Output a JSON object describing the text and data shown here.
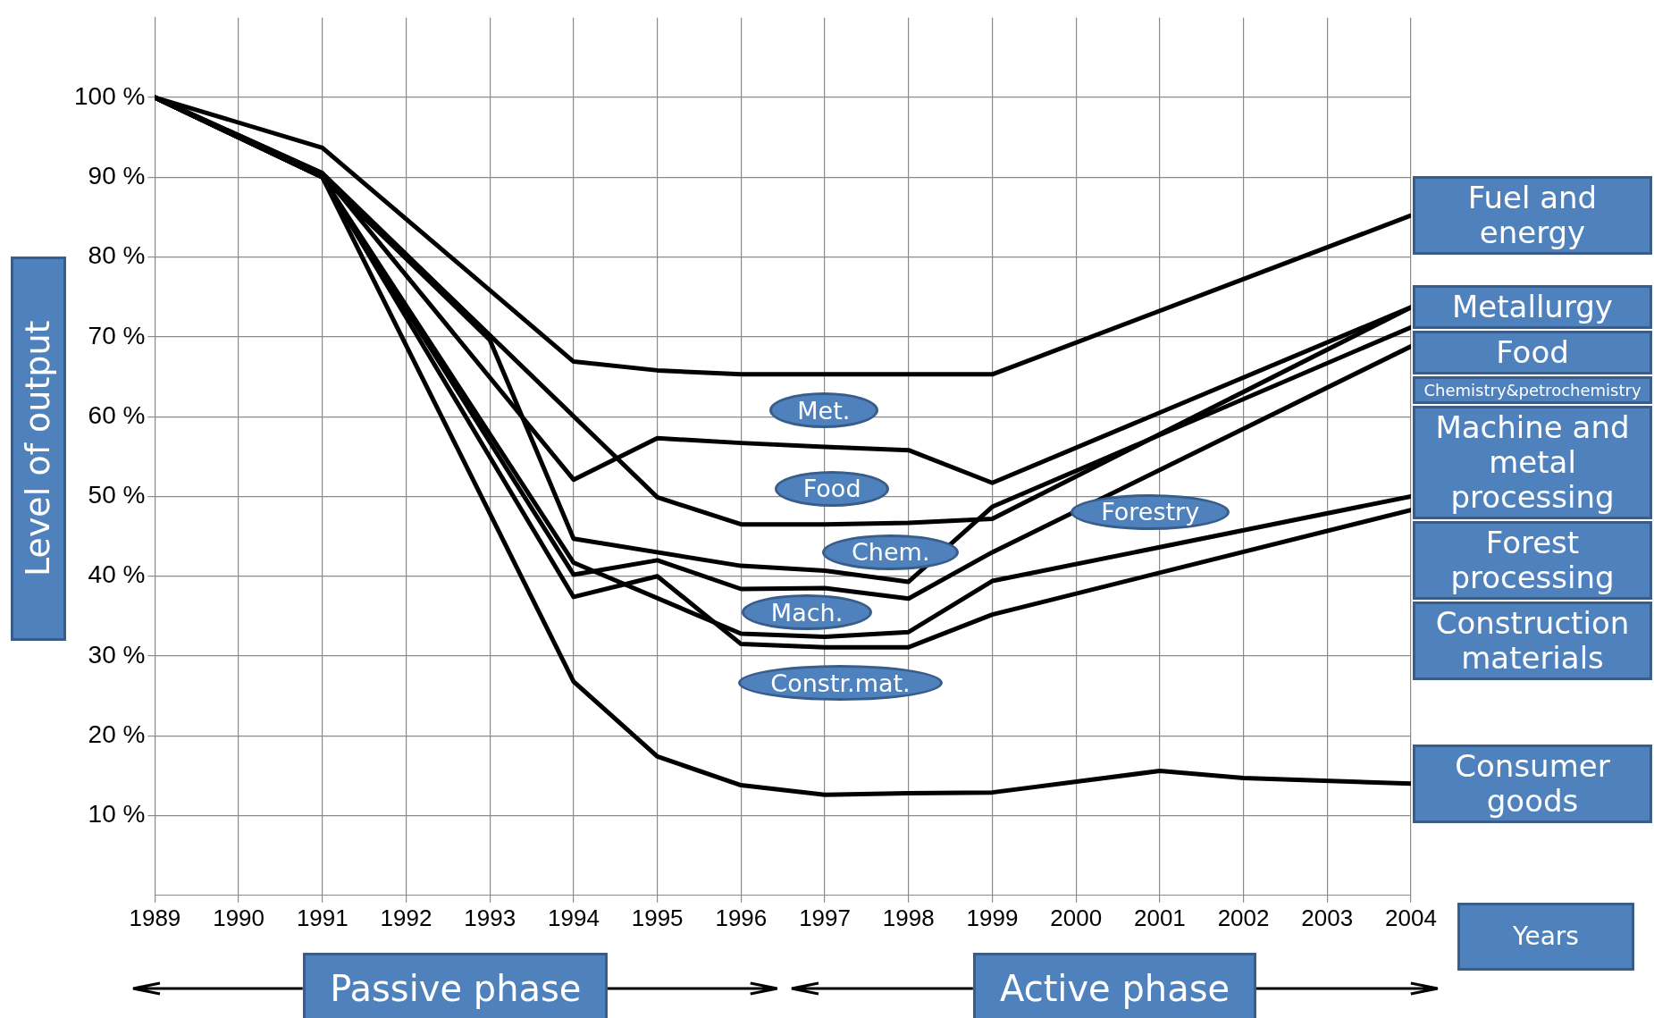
{
  "chart_data": {
    "type": "line",
    "xlabel": "Years",
    "ylabel": "Level of output",
    "xlim": [
      1989,
      2004
    ],
    "xticks": [
      1989,
      1990,
      1991,
      1992,
      1993,
      1994,
      1995,
      1996,
      1997,
      1998,
      1999,
      2000,
      2001,
      2002,
      2003,
      2004
    ],
    "ylim": [
      0,
      110
    ],
    "yticks": [
      {
        "value": 10,
        "label": "10 %"
      },
      {
        "value": 20,
        "label": "20 %"
      },
      {
        "value": 30,
        "label": "30 %"
      },
      {
        "value": 40,
        "label": "40 %"
      },
      {
        "value": 50,
        "label": "50 %"
      },
      {
        "value": 60,
        "label": "60 %"
      },
      {
        "value": 70,
        "label": "70 %"
      },
      {
        "value": 80,
        "label": "80 %"
      },
      {
        "value": 90,
        "label": "90 %"
      },
      {
        "value": 100,
        "label": "100 %"
      }
    ],
    "grid": true,
    "legend": false,
    "marker": "none",
    "line_style": "solid",
    "series": [
      {
        "name": "Fuel and energy",
        "color": "#000000",
        "x": [
          1989,
          1991,
          1994,
          1995,
          1996,
          1999,
          2004
        ],
        "values": [
          100,
          93.7,
          66.9,
          65.8,
          65.3,
          65.3,
          85.2
        ]
      },
      {
        "name": "Metallurgy",
        "color": "#000000",
        "x": [
          1989,
          1991,
          1994,
          1995,
          1996,
          1997,
          1998,
          1999,
          2004
        ],
        "values": [
          100,
          90.5,
          52.1,
          57.3,
          56.7,
          56.2,
          55.8,
          51.7,
          73.7
        ]
      },
      {
        "name": "Food",
        "color": "#000000",
        "x": [
          1989,
          1991,
          1995,
          1996,
          1997,
          1998,
          1999,
          2004
        ],
        "values": [
          100,
          90.5,
          49.9,
          46.5,
          46.5,
          46.7,
          47.2,
          73.7
        ]
      },
      {
        "name": "Chemistry&petrochemistry",
        "color": "#000000",
        "x": [
          1989,
          1991,
          1993,
          1994,
          1996,
          1997,
          1998,
          1999,
          2004
        ],
        "values": [
          100,
          90,
          69.6,
          44.7,
          41.3,
          40.7,
          39.3,
          48.7,
          71.2
        ]
      },
      {
        "name": "Machine and metal processing",
        "color": "#000000",
        "x": [
          1989,
          1991,
          1994,
          1995,
          1996,
          1997,
          1998,
          1999,
          2004
        ],
        "values": [
          100,
          90,
          40.2,
          42.0,
          38.4,
          38.5,
          37.2,
          43.0,
          68.8
        ]
      },
      {
        "name": "Forest processing",
        "color": "#000000",
        "x": [
          1989,
          1991,
          1994,
          1996,
          1997,
          1998,
          1999,
          2004
        ],
        "values": [
          100,
          90,
          41.7,
          32.8,
          32.4,
          33.0,
          39.4,
          50.0
        ]
      },
      {
        "name": "Construction materials",
        "color": "#000000",
        "x": [
          1989,
          1991,
          1994,
          1995,
          1996,
          1997,
          1998,
          1999,
          2004
        ],
        "values": [
          100,
          90,
          37.4,
          40.0,
          31.5,
          31.1,
          31.1,
          35.2,
          48.3
        ]
      },
      {
        "name": "Consumer goods",
        "color": "#000000",
        "x": [
          1989,
          1991,
          1994,
          1995,
          1996,
          1997,
          1998,
          1999,
          2001,
          2002,
          2004
        ],
        "values": [
          100,
          90,
          26.8,
          17.4,
          13.8,
          12.6,
          12.8,
          12.9,
          15.6,
          14.7,
          14.0
        ]
      }
    ],
    "annotations": [
      {
        "text": "Met.",
        "x": 1997.2,
        "y": 56.3
      },
      {
        "text": "Food",
        "x": 1997.3,
        "y": 46.5
      },
      {
        "text": "Chem.",
        "x": 1998,
        "y": 39.3
      },
      {
        "text": "Mach.",
        "x": 1997,
        "y": 38.5
      },
      {
        "text": "Constr.mat.",
        "x": 1997.4,
        "y": 31.1
      },
      {
        "text": "Forestry",
        "x": 2001.1,
        "y": 43.6
      },
      "Passive phase",
      "Active phase"
    ]
  }
}
